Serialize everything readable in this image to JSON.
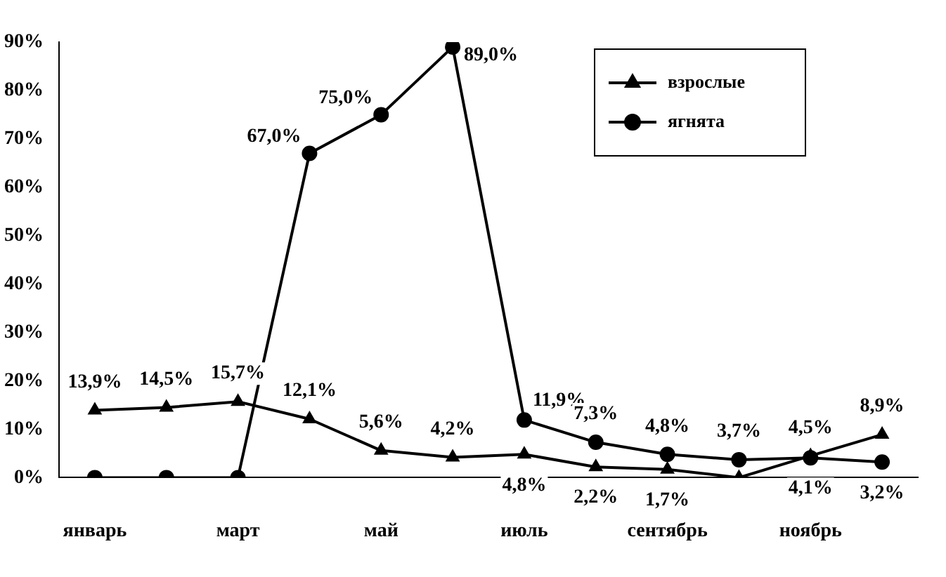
{
  "chart_data": {
    "type": "line",
    "categories": [
      "январь",
      null,
      "март",
      null,
      "май",
      null,
      "июль",
      null,
      "сентябрь",
      null,
      "ноябрь",
      null
    ],
    "series": [
      {
        "name": "взрослые",
        "color": "#000000",
        "marker": "triangle",
        "values": [
          13.9,
          14.5,
          15.7,
          12.1,
          5.6,
          4.2,
          4.8,
          2.2,
          1.7,
          0,
          4.5,
          8.9
        ],
        "value_labels": [
          "13,9%",
          "14,5%",
          "15,7%",
          "12,1%",
          "5,6%",
          "4,2%",
          "4,8%",
          "2,2%",
          "1,7%",
          null,
          "4,5%",
          "8,9%"
        ]
      },
      {
        "name": "ягнята",
        "color": "#000000",
        "marker": "circle",
        "values": [
          0,
          0,
          0,
          67,
          75,
          89,
          11.9,
          7.3,
          4.8,
          3.7,
          4.1,
          3.2
        ],
        "value_labels": [
          null,
          null,
          null,
          "67,0%",
          "75,0%",
          "89,0%",
          "11,9%",
          "7,3%",
          "4,8%",
          "3,7%",
          "4,1%",
          "3,2%"
        ]
      }
    ],
    "ylim": [
      0,
      90
    ],
    "yticks": [
      {
        "value": 0,
        "label": "0%"
      },
      {
        "value": 10,
        "label": "10%"
      },
      {
        "value": 20,
        "label": "20%"
      },
      {
        "value": 30,
        "label": "30%"
      },
      {
        "value": 40,
        "label": "40%"
      },
      {
        "value": 50,
        "label": "50%"
      },
      {
        "value": 60,
        "label": "60%"
      },
      {
        "value": 70,
        "label": "70%"
      },
      {
        "value": 80,
        "label": "80%"
      },
      {
        "value": 90,
        "label": "90%"
      }
    ],
    "grid": false,
    "legend": "top right",
    "line_style": "solid"
  }
}
